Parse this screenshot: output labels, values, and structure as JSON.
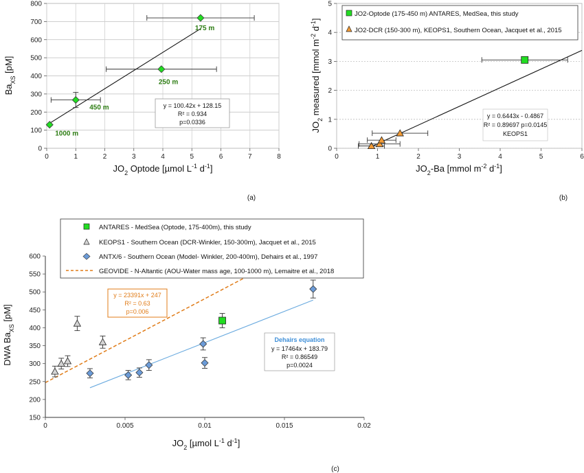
{
  "chart_data": [
    {
      "panel": "a",
      "type": "scatter",
      "caption": "(a)",
      "xlabel": "JO2 Optode [µmol L-1 d-1]",
      "ylabel": "Baxs [pM]",
      "xlim": [
        0,
        8
      ],
      "ylim": [
        0,
        800
      ],
      "x_ticks": [
        0,
        1,
        2,
        3,
        4,
        5,
        6,
        7,
        8
      ],
      "y_ticks": [
        0,
        100,
        200,
        300,
        400,
        500,
        600,
        700,
        800
      ],
      "grid": true,
      "series": [
        {
          "marker": "diamond",
          "color": "#22dd22",
          "points": [
            {
              "x": 0.1,
              "y": 130,
              "x_err": 0,
              "y_err": 0,
              "label": "1000 m"
            },
            {
              "x": 1.0,
              "y": 267,
              "x_err": 0.85,
              "y_err": 42,
              "label": "450 m"
            },
            {
              "x": 3.95,
              "y": 437,
              "x_err": 1.9,
              "y_err": 0,
              "label": "250 m"
            },
            {
              "x": 5.3,
              "y": 720,
              "x_err": 1.85,
              "y_err": 0,
              "label": "175 m"
            }
          ]
        }
      ],
      "fit": {
        "slope": 100.42,
        "intercept": 128.15,
        "x_range": [
          0.1,
          5.3
        ],
        "color": "#111111"
      },
      "annotation": [
        "y = 100.42x + 128.15",
        "R² = 0.934",
        "p=0.0336"
      ]
    },
    {
      "panel": "b",
      "type": "scatter",
      "caption": "(b)",
      "xlabel": "JO2-Ba [mmol m-2 d-1]",
      "ylabel": "JO2 measured [mmol m-2 d-1]",
      "xlim": [
        0,
        6
      ],
      "ylim": [
        0,
        5
      ],
      "x_ticks": [
        0,
        1,
        2,
        3,
        4,
        5,
        6
      ],
      "y_ticks": [
        0,
        1,
        2,
        3,
        4,
        5
      ],
      "grid": true,
      "legend": "top-right",
      "series": [
        {
          "name": "JO2-Optode (175-450 m) ANTARES, MedSea, this study",
          "marker": "square",
          "color": "#22dd22",
          "points": [
            {
              "x": 4.6,
              "y": 3.05,
              "x_err": 1.05,
              "y_err": 0
            }
          ]
        },
        {
          "name": "JO2-DCR (150-300 m), KEOPS1, Southern Ocean, Jacquet et al., 2015",
          "marker": "triangle",
          "color": "#f39b35",
          "points": [
            {
              "x": 0.85,
              "y": 0.08,
              "x_err": 0.32,
              "y_err": 0
            },
            {
              "x": 1.05,
              "y": 0.15,
              "x_err": 0.5,
              "y_err": 0
            },
            {
              "x": 1.1,
              "y": 0.28,
              "x_err": 0.35,
              "y_err": 0
            },
            {
              "x": 1.55,
              "y": 0.52,
              "x_err": 0.68,
              "y_err": 0
            }
          ]
        }
      ],
      "fit": {
        "slope": 0.6443,
        "intercept": -0.4867,
        "x_range": [
          0.9,
          6
        ],
        "color": "#111111"
      },
      "annotation": [
        "y = 0.6443x - 0.4867",
        "R² = 0.89697 p=0.0145",
        "KEOPS1"
      ]
    },
    {
      "panel": "c",
      "type": "scatter",
      "caption": "(c)",
      "xlabel": "JO2 [µmol L-1 d-1]",
      "ylabel": "DWA Baxs [pM]",
      "xlim": [
        0,
        0.02
      ],
      "ylim": [
        150,
        600
      ],
      "x_ticks": [
        0,
        0.005,
        0.01,
        0.015,
        0.02
      ],
      "y_ticks": [
        150,
        200,
        250,
        300,
        350,
        400,
        450,
        500,
        550,
        600
      ],
      "grid": false,
      "legend": "top",
      "series": [
        {
          "name": "ANTARES - MedSea (Optode, 175-400m), this study",
          "marker": "square",
          "color": "#22dd22",
          "points": [
            {
              "x": 0.0111,
              "y": 420,
              "y_err": 20
            }
          ]
        },
        {
          "name": "KEOPS1 - Southern Ocean (DCR-Winkler, 150-300m), Jacquet et al., 2015",
          "marker": "triangle",
          "color": "#d4d4d4",
          "points": [
            {
              "x": 0.0006,
              "y": 278,
              "y_err": 15
            },
            {
              "x": 0.001,
              "y": 300,
              "y_err": 15
            },
            {
              "x": 0.0014,
              "y": 307,
              "y_err": 15
            },
            {
              "x": 0.002,
              "y": 412,
              "y_err": 20
            },
            {
              "x": 0.0036,
              "y": 360,
              "y_err": 17
            }
          ]
        },
        {
          "name": "ANTX/6 - Southern Ocean (Model- Winkler, 200-400m), Dehairs et al., 1997",
          "marker": "diamond",
          "color": "#6b9bd8",
          "points": [
            {
              "x": 0.0028,
              "y": 273,
              "y_err": 13
            },
            {
              "x": 0.0052,
              "y": 268,
              "y_err": 13
            },
            {
              "x": 0.0059,
              "y": 275,
              "y_err": 13
            },
            {
              "x": 0.0065,
              "y": 296,
              "y_err": 15
            },
            {
              "x": 0.0099,
              "y": 355,
              "y_err": 17
            },
            {
              "x": 0.01,
              "y": 302,
              "y_err": 15
            },
            {
              "x": 0.0168,
              "y": 508,
              "y_err": 25
            }
          ]
        },
        {
          "name": "GEOVIDE - N-Altantic (AOU-Water mass age, 100-1000 m), Lemaitre et al., 2018",
          "marker": "dashed-line",
          "color": "#e07b17",
          "points": []
        }
      ],
      "fits": [
        {
          "slope": 23391,
          "intercept": 247,
          "x_range": [
            0,
            0.0141
          ],
          "color": "#e07b17",
          "dashed": true
        },
        {
          "slope": 17464,
          "intercept": 183.79,
          "x_range": [
            0.0028,
            0.0168
          ],
          "color": "#6aaadf",
          "dashed": false
        }
      ],
      "annotations": [
        {
          "lines": [
            "y = 23391x + 247",
            "R² = 0.63",
            "p=0.006"
          ],
          "color": "#e07b17"
        },
        {
          "title": "Dehairs equation",
          "lines": [
            "y = 17464x + 183.79",
            "R² = 0.86549",
            "p=0.0024"
          ],
          "color": "#111111",
          "title_color": "#3f8fd8"
        }
      ]
    }
  ]
}
